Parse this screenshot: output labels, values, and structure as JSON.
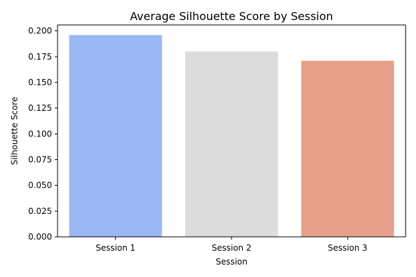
{
  "chart_data": {
    "type": "bar",
    "title": "Average Silhouette Score by Session",
    "xlabel": "Session",
    "ylabel": "Silhouette Score",
    "categories": [
      "Session 1",
      "Session 2",
      "Session 3"
    ],
    "values": [
      0.196,
      0.18,
      0.171
    ],
    "colors": [
      "#9ab6f4",
      "#dcdcdc",
      "#e6a08a"
    ],
    "ylim": [
      0,
      0.2058
    ],
    "yticks": [
      "0.000",
      "0.025",
      "0.050",
      "0.075",
      "0.100",
      "0.125",
      "0.150",
      "0.175",
      "0.200"
    ],
    "grid": false,
    "legend": "none"
  }
}
